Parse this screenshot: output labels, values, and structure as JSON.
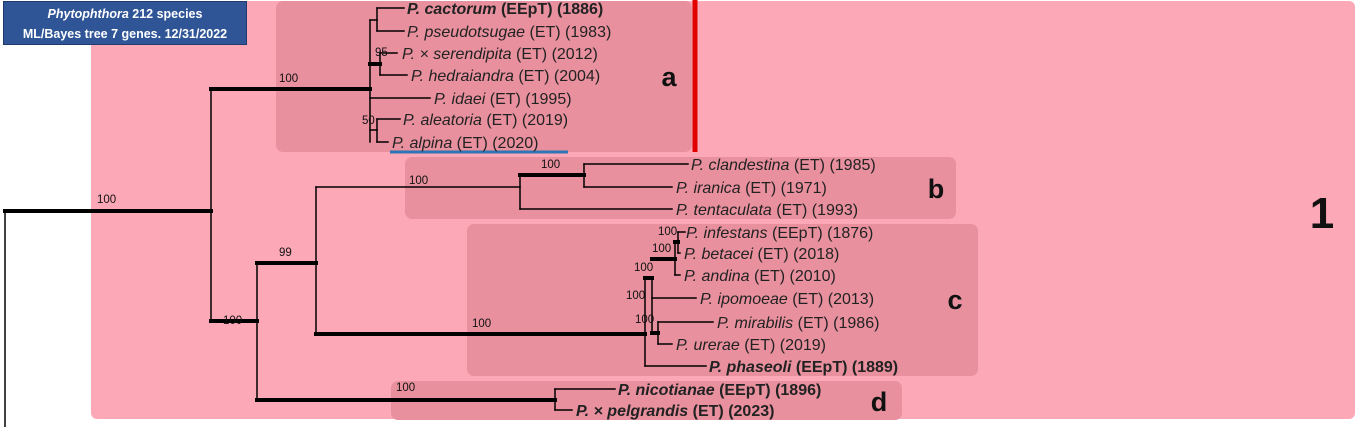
{
  "header": {
    "genus": "Phytophthora",
    "species_count": "212 species",
    "line2": "ML/Bayes tree 7 genes. 12/31/2022"
  },
  "colors": {
    "clade_region": "#fda8b6",
    "subclade_box": "#e8909e",
    "branch": "#000000",
    "red_bar": "#e00000",
    "underline": "#2e75b6",
    "header_bg": "#2f5597"
  },
  "clade_label": "1",
  "subclade_labels": {
    "a": "a",
    "b": "b",
    "c": "c",
    "d": "d"
  },
  "taxa": [
    {
      "id": "t1",
      "genus": "P.",
      "epithet": "cactorum",
      "rest": " (EEpT) (1886)",
      "bold": true
    },
    {
      "id": "t2",
      "genus": "P.",
      "epithet": "pseudotsugae",
      "rest": " (ET) (1983)"
    },
    {
      "id": "t3",
      "genus": "P.",
      "epithet": "× serendipita",
      "rest": " (ET) (2012)"
    },
    {
      "id": "t4",
      "genus": "P.",
      "epithet": "hedraiandra",
      "rest": " (ET) (2004)"
    },
    {
      "id": "t5",
      "genus": "P.",
      "epithet": "idaei",
      "rest": " (ET) (1995)"
    },
    {
      "id": "t6",
      "genus": "P.",
      "epithet": "aleatoria",
      "rest": " (ET) (2019)"
    },
    {
      "id": "t7",
      "genus": "P.",
      "epithet": "alpina",
      "rest": " (ET) (2020)"
    },
    {
      "id": "t8",
      "genus": "P.",
      "epithet": "clandestina",
      "rest": " (ET) (1985)"
    },
    {
      "id": "t9",
      "genus": "P.",
      "epithet": "iranica",
      "rest": " (ET) (1971)"
    },
    {
      "id": "t10",
      "genus": "P.",
      "epithet": "tentaculata",
      "rest": " (ET) (1993)"
    },
    {
      "id": "t11",
      "genus": "P.",
      "epithet": "infestans",
      "rest": " (EEpT) (1876)"
    },
    {
      "id": "t12",
      "genus": "P.",
      "epithet": "betacei",
      "rest": " (ET) (2018)"
    },
    {
      "id": "t13",
      "genus": "P.",
      "epithet": "andina",
      "rest": " (ET) (2010)"
    },
    {
      "id": "t14",
      "genus": "P.",
      "epithet": "ipomoeae",
      "rest": " (ET) (2013)"
    },
    {
      "id": "t15",
      "genus": "P.",
      "epithet": "mirabilis",
      "rest": " (ET) (1986)"
    },
    {
      "id": "t16",
      "genus": "P.",
      "epithet": "urerae",
      "rest": " (ET) (2019)"
    },
    {
      "id": "t17",
      "genus": "P.",
      "epithet": "phaseoli",
      "rest": " (EEpT) (1889)",
      "bold": true
    },
    {
      "id": "t18",
      "genus": "P.",
      "epithet": "nicotianae",
      "rest": " (EEpT) (1896)",
      "bold": true
    },
    {
      "id": "t19",
      "genus": "P.",
      "epithet": "× pelgrandis",
      "rest": " (ET) (2023)",
      "bold": true
    }
  ],
  "support_values": [
    {
      "id": "s_root",
      "value": "100"
    },
    {
      "id": "s_a",
      "value": "100"
    },
    {
      "id": "s_bcd",
      "value": "100"
    },
    {
      "id": "s_bc",
      "value": "99"
    },
    {
      "id": "s_b",
      "value": "100"
    },
    {
      "id": "s_b2",
      "value": "100"
    },
    {
      "id": "s_c",
      "value": "100"
    },
    {
      "id": "s_d",
      "value": "100"
    },
    {
      "id": "s_a95",
      "value": "95"
    },
    {
      "id": "s_a50",
      "value": "50"
    },
    {
      "id": "s_c1",
      "value": "100"
    },
    {
      "id": "s_c2",
      "value": "100"
    },
    {
      "id": "s_c3",
      "value": "100"
    },
    {
      "id": "s_c4",
      "value": "100"
    },
    {
      "id": "s_c5",
      "value": "100"
    }
  ]
}
